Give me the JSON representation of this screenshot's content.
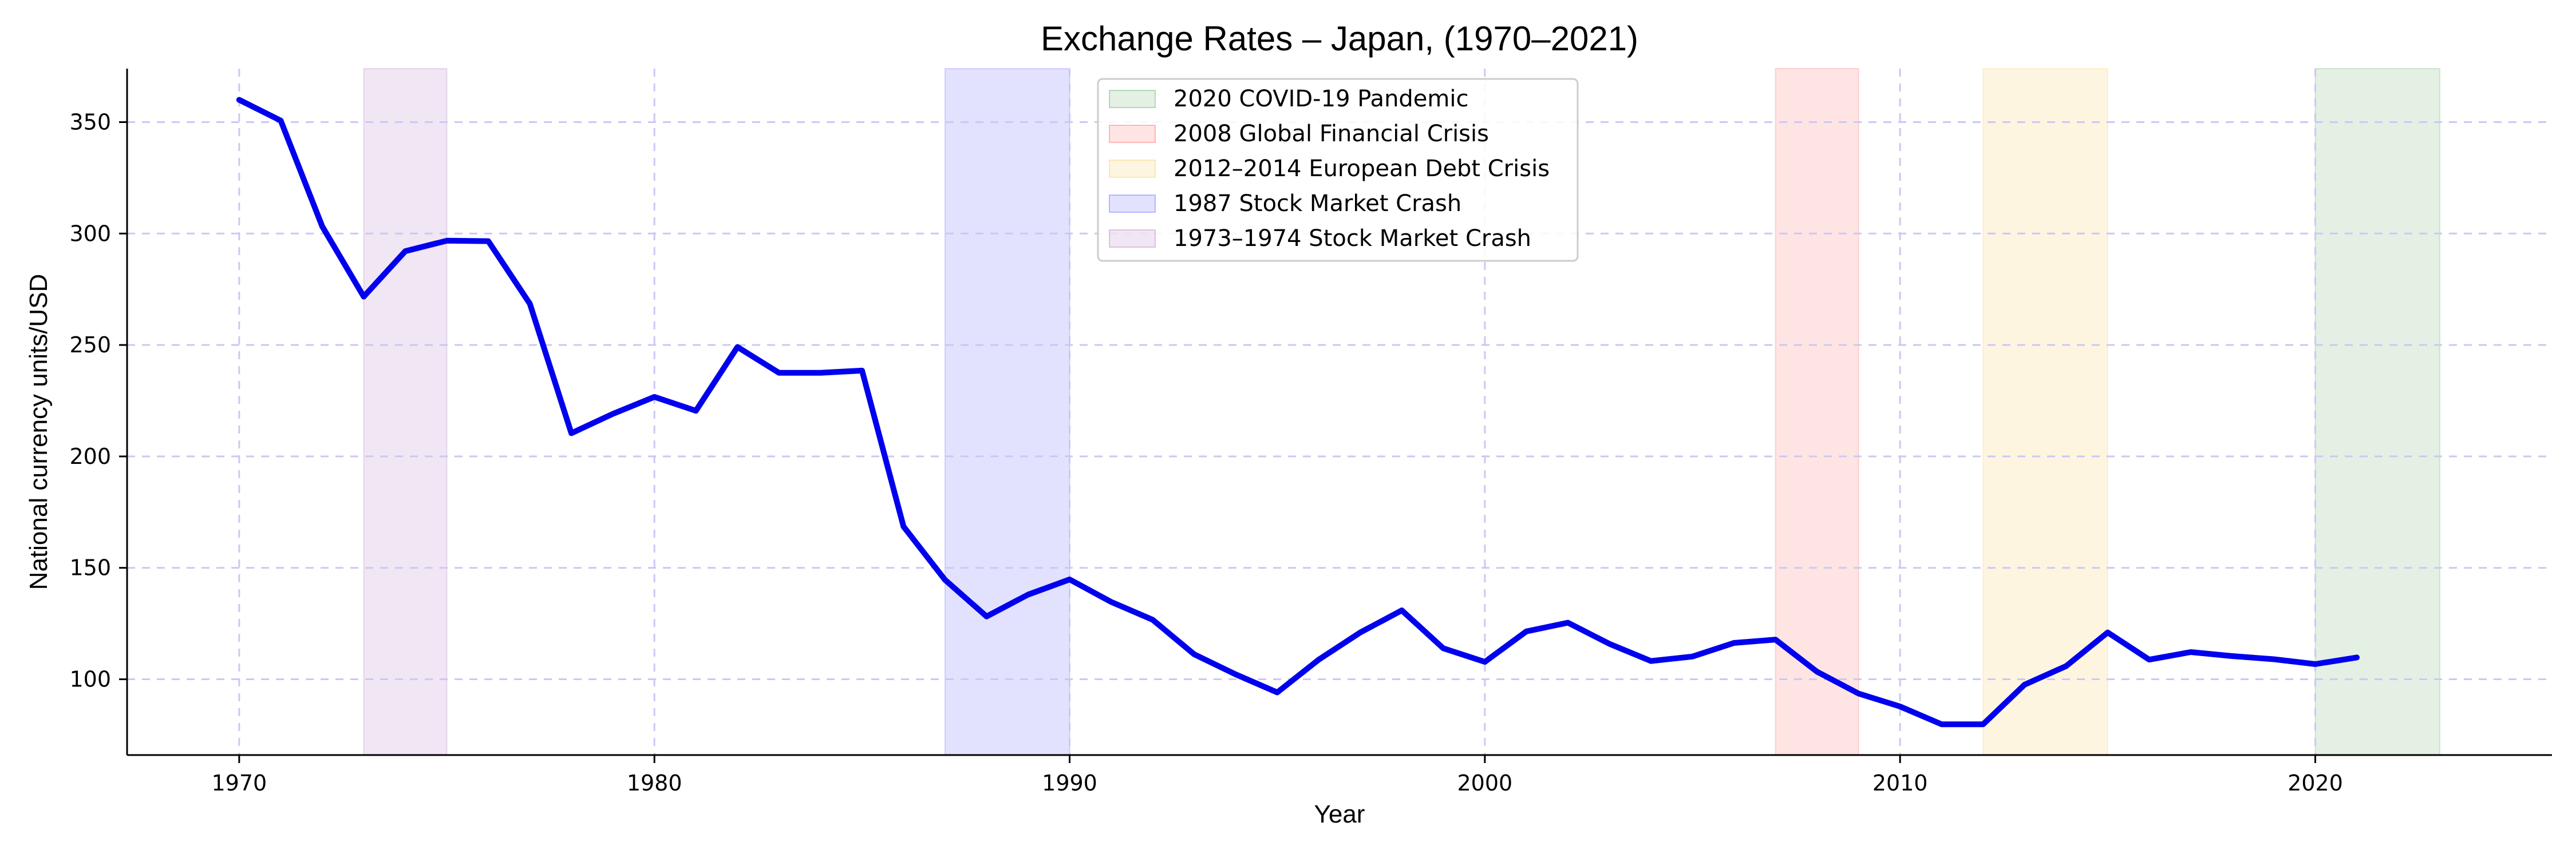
{
  "chart_data": {
    "type": "line",
    "title": "Exchange Rates – Japan, (1970–2021)",
    "xlabel": "Year",
    "ylabel": "National currency units/USD",
    "xlim": [
      1967.3,
      2025.7
    ],
    "ylim": [
      66,
      374
    ],
    "x_ticks": [
      1970,
      1980,
      1990,
      2000,
      2010,
      2020
    ],
    "y_ticks": [
      100,
      150,
      200,
      250,
      300,
      350
    ],
    "grid": true,
    "legend_position": "top-center",
    "series": [
      {
        "color": "#0000ee",
        "x": [
          1970,
          1971,
          1972,
          1973,
          1974,
          1975,
          1976,
          1977,
          1978,
          1979,
          1980,
          1981,
          1982,
          1983,
          1984,
          1985,
          1986,
          1987,
          1988,
          1989,
          1990,
          1991,
          1992,
          1993,
          1994,
          1995,
          1996,
          1997,
          1998,
          1999,
          2000,
          2001,
          2002,
          2003,
          2004,
          2005,
          2006,
          2007,
          2008,
          2009,
          2010,
          2011,
          2012,
          2013,
          2014,
          2015,
          2016,
          2017,
          2018,
          2019,
          2020,
          2021
        ],
        "values": [
          360,
          350.7,
          303.2,
          271.7,
          292.1,
          296.8,
          296.6,
          268.5,
          210.4,
          219.1,
          226.7,
          220.5,
          249.1,
          237.5,
          237.5,
          238.5,
          168.5,
          144.6,
          128.2,
          138.0,
          144.8,
          134.7,
          126.7,
          111.2,
          102.2,
          94.1,
          108.8,
          121.0,
          130.9,
          113.9,
          107.8,
          121.5,
          125.4,
          115.9,
          108.2,
          110.2,
          116.3,
          117.8,
          103.4,
          93.6,
          87.8,
          79.8,
          79.8,
          97.6,
          105.9,
          121.0,
          108.8,
          112.2,
          110.4,
          109.0,
          106.8,
          109.8
        ]
      }
    ],
    "shaded_regions": [
      {
        "label": "2020 COVID-19 Pandemic",
        "x0": 2020,
        "x1": 2023,
        "color": "#2e8b2e",
        "opacity": 0.13
      },
      {
        "label": "2008 Global Financial Crisis",
        "x0": 2007,
        "x1": 2009,
        "color": "#ff3030",
        "opacity": 0.13
      },
      {
        "label": "2012–2014 European Debt Crisis",
        "x0": 2012,
        "x1": 2015,
        "color": "#f5b935",
        "opacity": 0.15
      },
      {
        "label": "1987 Stock Market Crash",
        "x0": 1987,
        "x1": 1990,
        "color": "#3333ff",
        "opacity": 0.14
      },
      {
        "label": "1973–1974 Stock Market Crash",
        "x0": 1973,
        "x1": 1975,
        "color": "#9b4dab",
        "opacity": 0.14
      }
    ]
  }
}
